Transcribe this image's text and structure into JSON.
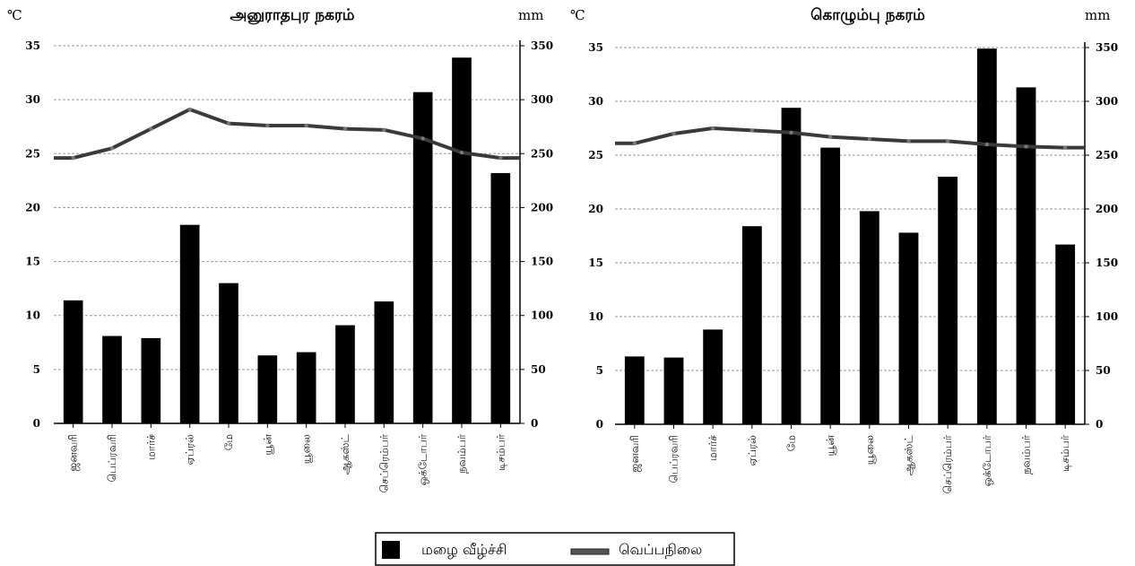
{
  "chart_data": [
    {
      "type": "bar+line",
      "title": "அனுராதபுர நகரம்",
      "ylabel_left": "℃",
      "ylabel_right": "mm",
      "categories": [
        "ஜனவரி",
        "பெப்ரவரி",
        "மார்ச்",
        "ஏப்ரல்",
        "மே",
        "யூன்",
        "யூலை",
        "ஆகஸ்ட்",
        "செப்ரெம்பர்",
        "ஒக்டோபர்",
        "நவம்பர்",
        "டிசம்பர்"
      ],
      "ylim_left": [
        0,
        35
      ],
      "ylim_right": [
        0,
        350
      ],
      "yticks_left": [
        "0",
        "5",
        "10",
        "15",
        "20",
        "25",
        "30",
        "35"
      ],
      "yticks_right": [
        "0",
        "50",
        "100",
        "150",
        "200",
        "250",
        "300",
        "350"
      ],
      "series": [
        {
          "name": "மழை வீழ்ச்சி",
          "kind": "bar",
          "axis": "right",
          "values": [
            114,
            81,
            79,
            184,
            130,
            63,
            66,
            91,
            113,
            307,
            339,
            232
          ]
        },
        {
          "name": "வெப்பநிலை",
          "kind": "line",
          "axis": "left",
          "values": [
            24.6,
            25.5,
            27.3,
            29.1,
            27.8,
            27.6,
            27.6,
            27.3,
            27.2,
            26.4,
            25.1,
            24.6
          ]
        }
      ],
      "grid": true
    },
    {
      "type": "bar+line",
      "title": "கொழும்பு நகரம்",
      "ylabel_left": "℃",
      "ylabel_right": "mm",
      "categories": [
        "ஜனவரி",
        "பெப்ரவரி",
        "மார்ச்",
        "ஏப்ரல்",
        "மே",
        "யூன்",
        "யூலை",
        "ஆகஸ்ட்",
        "செப்ரெம்பர்",
        "ஒக்டோபர்",
        "நவம்பர்",
        "டிசம்பர்"
      ],
      "ylim_left": [
        0,
        35
      ],
      "ylim_right": [
        0,
        350
      ],
      "yticks_left": [
        "0",
        "5",
        "10",
        "15",
        "20",
        "25",
        "30",
        "35"
      ],
      "yticks_right": [
        "0",
        "50",
        "100",
        "150",
        "200",
        "250",
        "300",
        "350"
      ],
      "series": [
        {
          "name": "மழை வீழ்ச்சி",
          "kind": "bar",
          "axis": "right",
          "values": [
            63,
            62,
            88,
            184,
            294,
            257,
            198,
            178,
            230,
            349,
            313,
            167
          ]
        },
        {
          "name": "வெப்பநிலை",
          "kind": "line",
          "axis": "left",
          "values": [
            26.1,
            27.0,
            27.5,
            27.3,
            27.1,
            26.7,
            26.5,
            26.3,
            26.3,
            26.0,
            25.8,
            25.7
          ]
        }
      ],
      "grid": true
    }
  ],
  "legend": {
    "position": "bottom-center",
    "items": [
      {
        "label": "மழை வீழ்ச்சி",
        "marker": "bar",
        "color": "#000000"
      },
      {
        "label": "வெப்பநிலை",
        "marker": "line",
        "color": "#444444"
      }
    ]
  },
  "colors": {
    "bar": "#000000",
    "line": "#3a3a3a",
    "grid": "#9a9a9a"
  }
}
